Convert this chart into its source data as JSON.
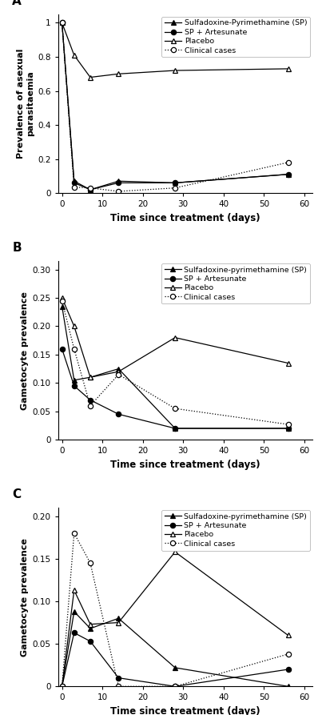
{
  "panel_A": {
    "title": "A",
    "ylabel": "Prevalence of asexual\nparasitaemia",
    "xlabel": "Time since treatment (days)",
    "ylim": [
      0,
      1.05
    ],
    "yticks": [
      0,
      0.2,
      0.4,
      0.6,
      0.8,
      1.0
    ],
    "ytick_labels": [
      "0",
      "0.2",
      "0.4",
      "0.6",
      "0.8",
      "1"
    ],
    "xlim": [
      -1,
      62
    ],
    "xticks": [
      0,
      10,
      20,
      30,
      40,
      50,
      60
    ],
    "series": {
      "SP": {
        "x": [
          0,
          3,
          7,
          14,
          28,
          56
        ],
        "y": [
          1.0,
          0.07,
          0.02,
          0.07,
          0.06,
          0.11
        ],
        "marker": "^",
        "linestyle": "-",
        "color": "#000000",
        "label": "Sulfadoxine-Pyrimethamine (SP)",
        "fillstyle": "full"
      },
      "SP_Art": {
        "x": [
          0,
          3,
          7,
          14,
          28,
          56
        ],
        "y": [
          1.0,
          0.06,
          0.02,
          0.06,
          0.06,
          0.11
        ],
        "marker": "o",
        "linestyle": "-",
        "color": "#000000",
        "label": "SP + Artesunate",
        "fillstyle": "full"
      },
      "Placebo": {
        "x": [
          0,
          3,
          7,
          14,
          28,
          56
        ],
        "y": [
          1.0,
          0.81,
          0.68,
          0.7,
          0.72,
          0.73
        ],
        "marker": "^",
        "linestyle": "-",
        "color": "#000000",
        "label": "Placebo",
        "fillstyle": "none"
      },
      "Clinical": {
        "x": [
          0,
          3,
          7,
          14,
          28,
          56
        ],
        "y": [
          1.0,
          0.035,
          0.03,
          0.01,
          0.03,
          0.18
        ],
        "marker": "o",
        "linestyle": ":",
        "color": "#000000",
        "label": "Clinical cases",
        "fillstyle": "none"
      }
    }
  },
  "panel_B": {
    "title": "B",
    "ylabel": "Gametocyte prevalence",
    "xlabel": "Time since treatment (days)",
    "ylim": [
      0,
      0.315
    ],
    "yticks": [
      0,
      0.05,
      0.1,
      0.15,
      0.2,
      0.25,
      0.3
    ],
    "ytick_labels": [
      "0",
      "0.05",
      "0.10",
      "0.15",
      "0.20",
      "0.25",
      "0.30"
    ],
    "xlim": [
      -1,
      62
    ],
    "xticks": [
      0,
      10,
      20,
      30,
      40,
      50,
      60
    ],
    "series": {
      "SP": {
        "x": [
          0,
          3,
          7,
          14,
          28,
          56
        ],
        "y": [
          0.235,
          0.105,
          0.11,
          0.125,
          0.02,
          0.02
        ],
        "marker": "^",
        "linestyle": "-",
        "color": "#000000",
        "label": "Sulfadoxine-pyrimethamine (SP)",
        "fillstyle": "full"
      },
      "SP_Art": {
        "x": [
          0,
          3,
          7,
          14,
          28,
          56
        ],
        "y": [
          0.16,
          0.095,
          0.07,
          0.045,
          0.02,
          0.02
        ],
        "marker": "o",
        "linestyle": "-",
        "color": "#000000",
        "label": "SP + Artesunate",
        "fillstyle": "full"
      },
      "Placebo": {
        "x": [
          0,
          3,
          7,
          14,
          28,
          56
        ],
        "y": [
          0.25,
          0.2,
          0.11,
          0.12,
          0.18,
          0.135
        ],
        "marker": "^",
        "linestyle": "-",
        "color": "#000000",
        "label": "Placebo",
        "fillstyle": "none"
      },
      "Clinical": {
        "x": [
          0,
          3,
          7,
          14,
          28,
          56
        ],
        "y": [
          0.245,
          0.16,
          0.06,
          0.115,
          0.055,
          0.027
        ],
        "marker": "o",
        "linestyle": ":",
        "color": "#000000",
        "label": "Clinical cases",
        "fillstyle": "none"
      }
    }
  },
  "panel_C": {
    "title": "C",
    "ylabel": "Gametocyte prevalence",
    "xlabel": "Time since treatment (days)",
    "ylim": [
      0,
      0.21
    ],
    "yticks": [
      0,
      0.05,
      0.1,
      0.15,
      0.2
    ],
    "ytick_labels": [
      "0",
      "0.05",
      "0.10",
      "0.15",
      "0.20"
    ],
    "xlim": [
      -1,
      62
    ],
    "xticks": [
      0,
      10,
      20,
      30,
      40,
      50,
      60
    ],
    "series": {
      "SP": {
        "x": [
          0,
          3,
          7,
          14,
          28,
          56
        ],
        "y": [
          0.0,
          0.088,
          0.068,
          0.08,
          0.022,
          0.0
        ],
        "marker": "^",
        "linestyle": "-",
        "color": "#000000",
        "label": "Sulfadoxine-pyrimethamine (SP)",
        "fillstyle": "full"
      },
      "SP_Art": {
        "x": [
          0,
          3,
          7,
          14,
          28,
          56
        ],
        "y": [
          0.0,
          0.063,
          0.053,
          0.01,
          0.0,
          0.02
        ],
        "marker": "o",
        "linestyle": "-",
        "color": "#000000",
        "label": "SP + Artesunate",
        "fillstyle": "full"
      },
      "Placebo": {
        "x": [
          0,
          3,
          7,
          14,
          28,
          56
        ],
        "y": [
          0.0,
          0.113,
          0.073,
          0.075,
          0.158,
          0.06
        ],
        "marker": "^",
        "linestyle": "-",
        "color": "#000000",
        "label": "Placebo",
        "fillstyle": "none"
      },
      "Clinical": {
        "x": [
          0,
          3,
          7,
          14,
          28,
          56
        ],
        "y": [
          0.0,
          0.18,
          0.145,
          0.0,
          0.0,
          0.038
        ],
        "marker": "o",
        "linestyle": ":",
        "color": "#000000",
        "label": "Clinical cases",
        "fillstyle": "none"
      }
    }
  }
}
